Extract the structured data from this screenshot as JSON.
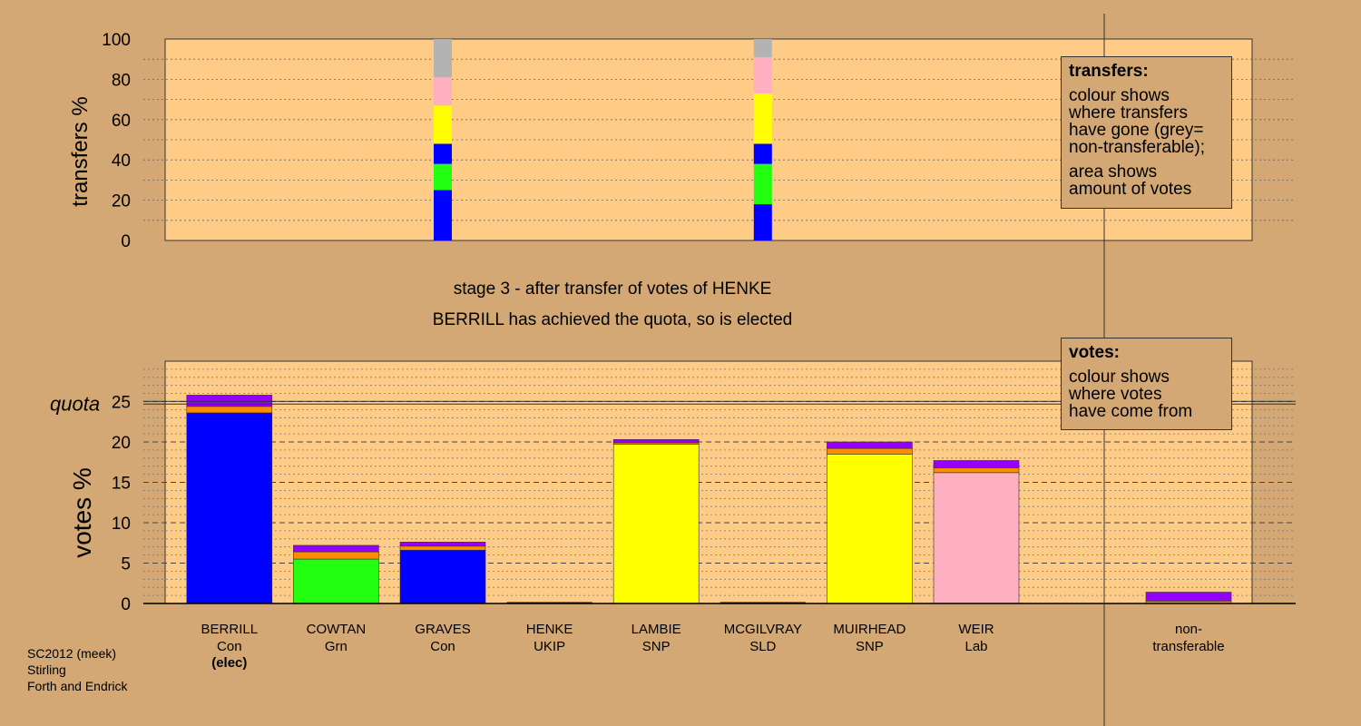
{
  "chart_data": {
    "type": "bar",
    "title": "stage 3 - after transfer of votes of HENKE",
    "subtitle": "BERRILL has achieved the quota, so is elected",
    "colors": {
      "Con": "#0000FF",
      "Grn": "#22FF11",
      "SNP": "#FFFF00",
      "Lab": "#FFB0C0",
      "UKIP": "#FF8C00",
      "SLD": "#9400FF",
      "nontransferable": "#B3B3B3"
    },
    "transfers": {
      "ylabel": "transfers %",
      "ylim": [
        0,
        100
      ],
      "yticks": [
        "0",
        "20",
        "40",
        "60",
        "80",
        "100"
      ],
      "bars": [
        {
          "category": "GRAVES",
          "segments": [
            {
              "party": "Con",
              "value": 25
            },
            {
              "party": "Grn",
              "value": 13
            },
            {
              "party": "Con",
              "value": 10
            },
            {
              "party": "SNP",
              "value": 19
            },
            {
              "party": "Lab",
              "value": 14
            },
            {
              "party": "nontransferable",
              "value": 19
            }
          ]
        },
        {
          "category": "MCGILVRAY",
          "segments": [
            {
              "party": "Con",
              "value": 18
            },
            {
              "party": "Grn",
              "value": 20
            },
            {
              "party": "Con",
              "value": 10
            },
            {
              "party": "SNP",
              "value": 25
            },
            {
              "party": "Lab",
              "value": 18
            },
            {
              "party": "nontransferable",
              "value": 9
            }
          ]
        }
      ]
    },
    "votes": {
      "ylabel": "votes %",
      "ylim": [
        0,
        30
      ],
      "yticks": [
        "0",
        "5",
        "10",
        "15",
        "20",
        "25"
      ],
      "quota": 24.8,
      "quota_label": "quota",
      "categories": [
        {
          "name": "BERRILL",
          "party": "Con",
          "note": "(elec)",
          "segments": [
            {
              "party": "Con",
              "value": 23.6
            },
            {
              "party": "UKIP",
              "value": 0.8
            },
            {
              "party": "SLD",
              "value": 1.4
            }
          ]
        },
        {
          "name": "COWTAN",
          "party": "Grn",
          "note": "",
          "segments": [
            {
              "party": "Grn",
              "value": 5.5
            },
            {
              "party": "UKIP",
              "value": 0.9
            },
            {
              "party": "SLD",
              "value": 0.8
            }
          ]
        },
        {
          "name": "GRAVES",
          "party": "Con",
          "note": "",
          "segments": [
            {
              "party": "Con",
              "value": 6.6
            },
            {
              "party": "UKIP",
              "value": 0.5
            },
            {
              "party": "SLD",
              "value": 0.5
            }
          ]
        },
        {
          "name": "HENKE",
          "party": "UKIP",
          "note": "",
          "segments": []
        },
        {
          "name": "LAMBIE",
          "party": "SNP",
          "note": "",
          "segments": [
            {
              "party": "SNP",
              "value": 19.7
            },
            {
              "party": "UKIP",
              "value": 0.2
            },
            {
              "party": "SLD",
              "value": 0.4
            }
          ]
        },
        {
          "name": "MCGILVRAY",
          "party": "SLD",
          "note": "",
          "segments": []
        },
        {
          "name": "MUIRHEAD",
          "party": "SNP",
          "note": "",
          "segments": [
            {
              "party": "SNP",
              "value": 18.5
            },
            {
              "party": "UKIP",
              "value": 0.7
            },
            {
              "party": "SLD",
              "value": 0.8
            }
          ]
        },
        {
          "name": "WEIR",
          "party": "Lab",
          "note": "",
          "segments": [
            {
              "party": "Lab",
              "value": 16.2
            },
            {
              "party": "UKIP",
              "value": 0.6
            },
            {
              "party": "SLD",
              "value": 0.9
            }
          ]
        }
      ],
      "nontransferable": {
        "label_line1": "non-",
        "label_line2": "transferable",
        "segments": [
          {
            "party": "UKIP",
            "value": 0.3
          },
          {
            "party": "SLD",
            "value": 1.1
          }
        ]
      }
    }
  },
  "legend_transfers": {
    "heading": "transfers:",
    "line1": "colour shows",
    "line2": "where transfers",
    "line3": "have gone (grey=",
    "line4": "non-transferable);",
    "line5": "area shows",
    "line6": "amount of votes"
  },
  "legend_votes": {
    "heading": "votes:",
    "line1": "colour shows",
    "line2": "where votes",
    "line3": "have come from"
  },
  "footer": {
    "line1": "SC2012 (meek)",
    "line2": "Stirling",
    "line3": "Forth and Endrick"
  }
}
